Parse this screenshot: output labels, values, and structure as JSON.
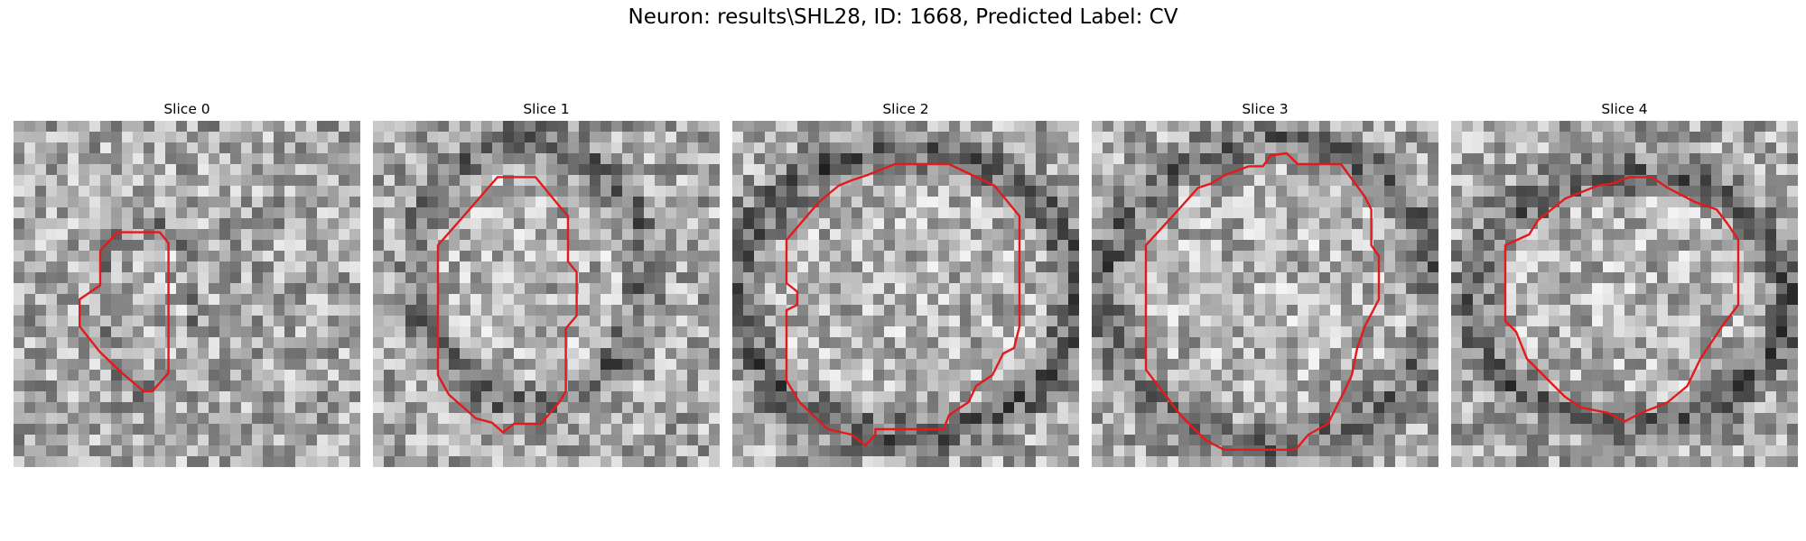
{
  "figure": {
    "title": "Neuron: results\\SHL28, ID: 1668, Predicted Label: CV"
  },
  "panels": [
    {
      "title": "Slice 0"
    },
    {
      "title": "Slice 1"
    },
    {
      "title": "Slice 2"
    },
    {
      "title": "Slice 3"
    },
    {
      "title": "Slice 4"
    }
  ],
  "colors": {
    "contour": "#e31a1c"
  }
}
